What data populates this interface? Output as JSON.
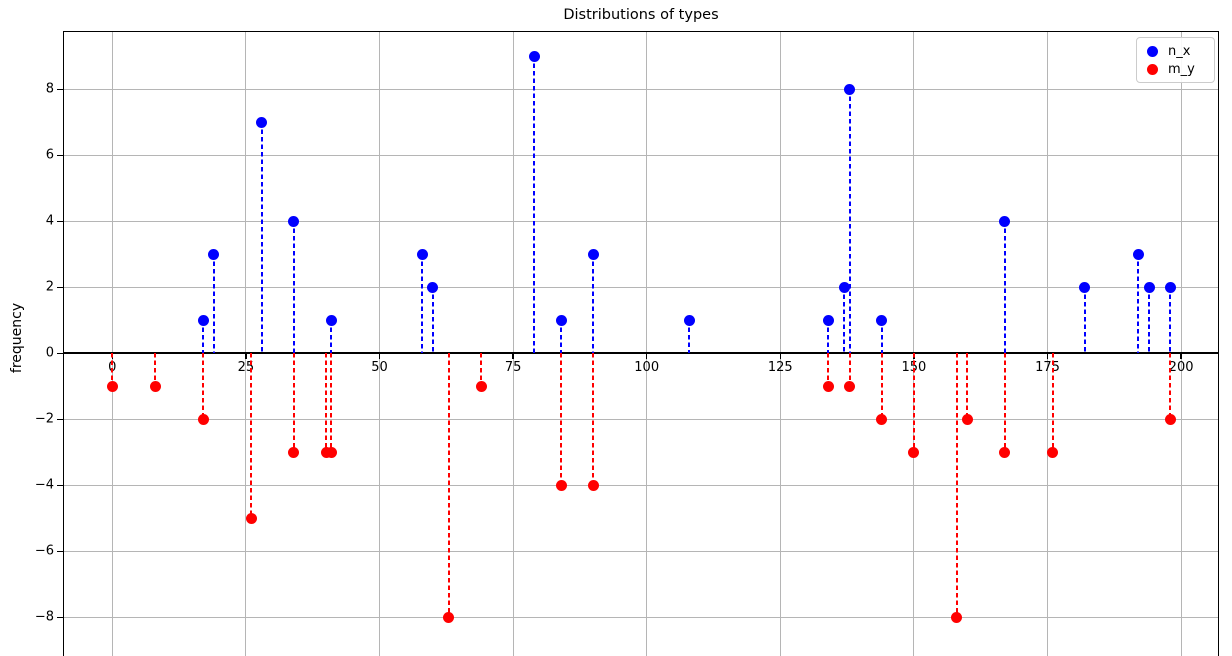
{
  "figure": {
    "title": "Distributions of types",
    "ylabel": "frequency"
  },
  "legend": {
    "entries": [
      {
        "label": "n_x",
        "color": "#0000ff"
      },
      {
        "label": "m_y",
        "color": "#ff0000"
      }
    ]
  },
  "colors": {
    "grid": "#b5b5b5",
    "spine": "#000000",
    "background": "#ffffff",
    "series_blue": "#0000ff",
    "series_red": "#ff0000"
  },
  "chart_data": {
    "type": "scatter",
    "variant": "stem",
    "title": "Distributions of types",
    "xlabel": "",
    "ylabel": "frequency",
    "grid": true,
    "legend_position": "upper right",
    "baseline": 0,
    "x_ticks": [
      0,
      25,
      50,
      75,
      100,
      125,
      150,
      175,
      200
    ],
    "y_ticks": [
      -8,
      -6,
      -4,
      -2,
      0,
      2,
      4,
      6,
      8
    ],
    "xlim": [
      -9.2,
      207.1
    ],
    "ylim": [
      -9.2,
      9.8
    ],
    "series": [
      {
        "name": "n_x",
        "color": "#0000ff",
        "direction": "up",
        "points": [
          [
            17,
            1
          ],
          [
            19,
            3
          ],
          [
            28,
            7
          ],
          [
            34,
            4
          ],
          [
            41,
            1
          ],
          [
            58,
            3
          ],
          [
            60,
            2
          ],
          [
            79,
            9
          ],
          [
            84,
            1
          ],
          [
            90,
            3
          ],
          [
            108,
            1
          ],
          [
            134,
            1
          ],
          [
            137,
            2
          ],
          [
            138,
            8
          ],
          [
            144,
            1
          ],
          [
            167,
            4
          ],
          [
            182,
            2
          ],
          [
            192,
            3
          ],
          [
            194,
            2
          ],
          [
            198,
            2
          ]
        ]
      },
      {
        "name": "m_y",
        "color": "#ff0000",
        "direction": "down",
        "points": [
          [
            0,
            -1
          ],
          [
            8,
            -1
          ],
          [
            17,
            -2
          ],
          [
            26,
            -5
          ],
          [
            34,
            -3
          ],
          [
            40,
            -3
          ],
          [
            41,
            -3
          ],
          [
            63,
            -8
          ],
          [
            69,
            -1
          ],
          [
            84,
            -4
          ],
          [
            90,
            -4
          ],
          [
            134,
            -1
          ],
          [
            138,
            -1
          ],
          [
            144,
            -2
          ],
          [
            150,
            -3
          ],
          [
            158,
            -8
          ],
          [
            160,
            -2
          ],
          [
            167,
            -3
          ],
          [
            176,
            -3
          ],
          [
            198,
            -2
          ]
        ]
      }
    ]
  }
}
